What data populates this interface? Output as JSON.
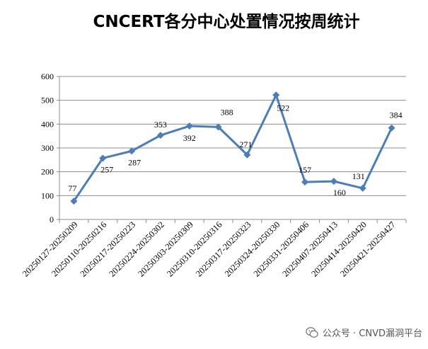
{
  "chart_data": {
    "type": "line",
    "title": "CNCERT各分中心处置情况按周统计",
    "xlabel": "",
    "ylabel": "",
    "categories": [
      "20250127-20250209",
      "20250110-20250216",
      "20250217-20250223",
      "20250224-20250302",
      "20250303-20250309",
      "20250310-20250316",
      "20250317-20250323",
      "20250324-20250330",
      "20250331-20250406",
      "20250407-20250413",
      "20250414-20250420",
      "20250421-20250427"
    ],
    "series": [
      {
        "values": [
          77,
          257,
          287,
          353,
          392,
          388,
          271,
          522,
          157,
          160,
          131,
          384
        ]
      }
    ],
    "ylim": [
      0,
      600
    ],
    "yticks": [
      0,
      100,
      200,
      300,
      400,
      500,
      600
    ],
    "grid": true,
    "legend": "none",
    "line_color": "#4a7ebb"
  },
  "watermark": {
    "text": "公众号 · CNVD漏洞平台"
  }
}
